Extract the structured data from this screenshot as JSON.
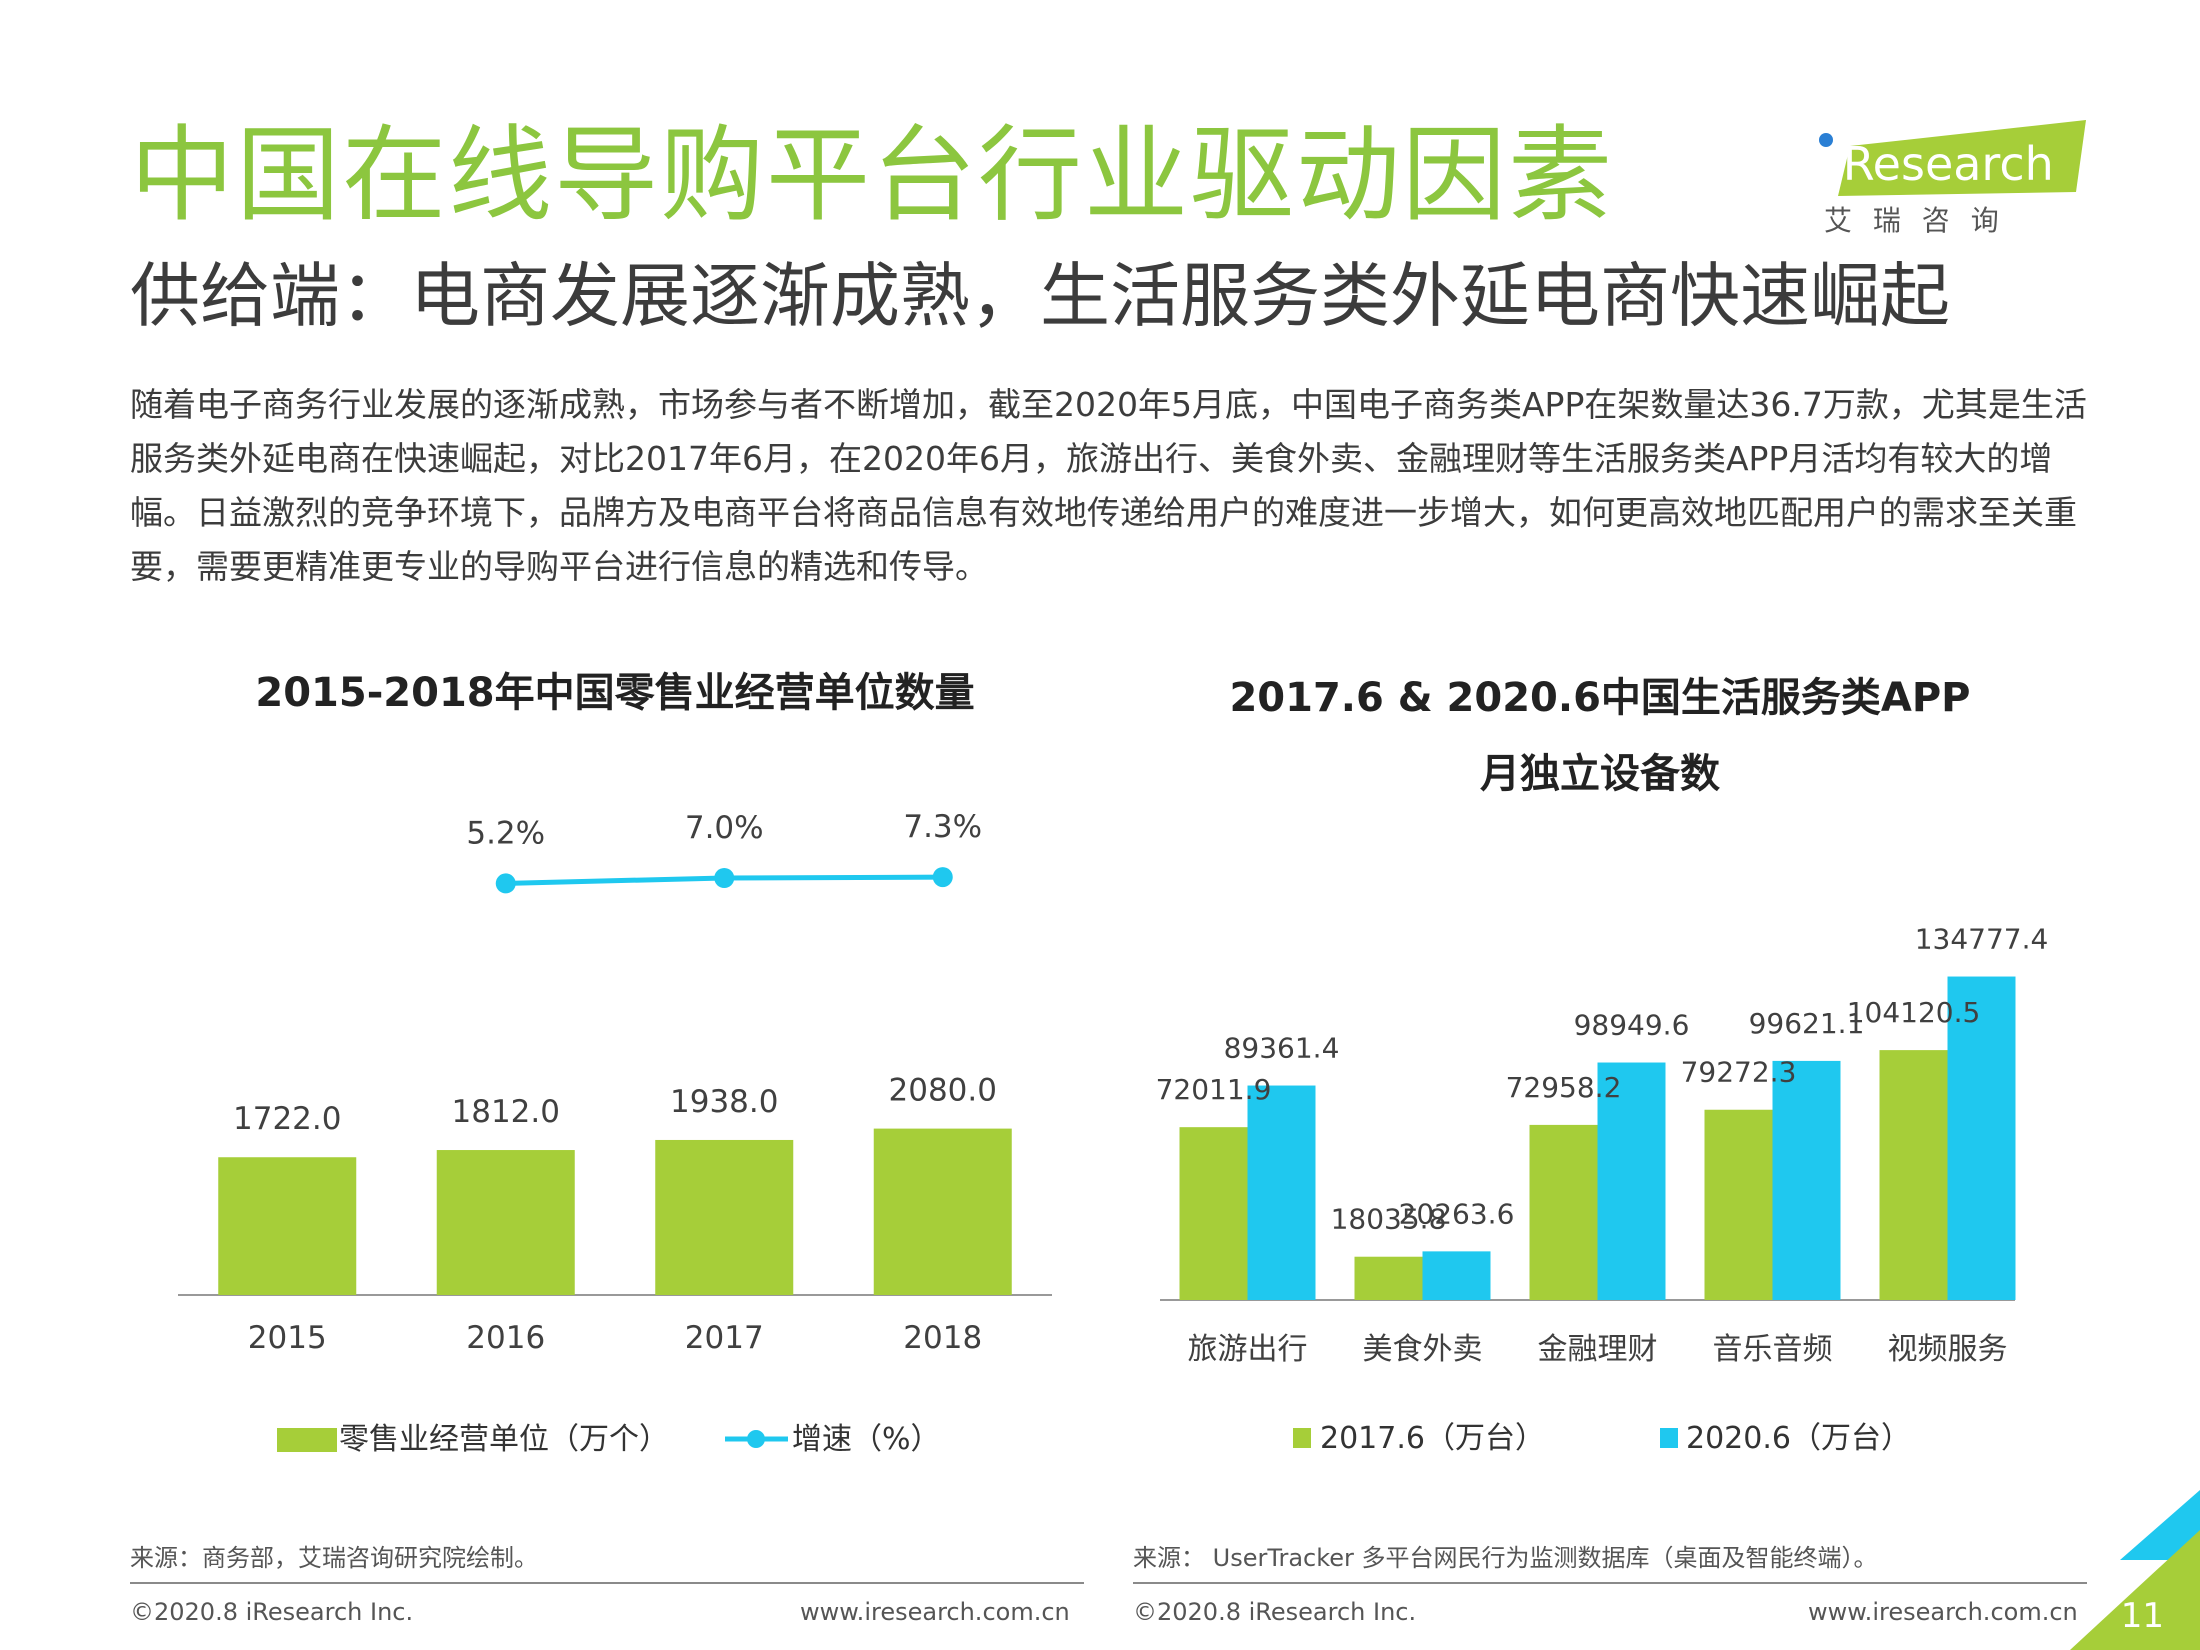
{
  "header": {
    "title": "中国在线导购平台行业驱动因素",
    "subtitle": "供给端：电商发展逐渐成熟，生活服务类外延电商快速崛起",
    "logo_text": "iResearch",
    "logo_sub": "艾 瑞 咨 询"
  },
  "intro": "随着电子商务行业发展的逐渐成熟，市场参与者不断增加，截至2020年5月底，中国电子商务类APP在架数量达36.7万款，尤其是生活服务类外延电商在快速崛起，对比2017年6月，在2020年6月，旅游出行、美食外卖、金融理财等生活服务类APP月活均有较大的增幅。日益激烈的竞争环境下，品牌方及电商平台将商品信息有效地传递给用户的难度进一步增大，如何更高效地匹配用户的需求至关重要，需要更精准更专业的导购平台进行信息的精选和传导。",
  "colors": {
    "green": "#a6ce39",
    "blue": "#1fc8ef",
    "title_green": "#8cc63f"
  },
  "chart_data": [
    {
      "type": "bar",
      "title": "2015-2018年中国零售业经营单位数量",
      "categories": [
        "2015",
        "2016",
        "2017",
        "2018"
      ],
      "series": [
        {
          "name": "零售业经营单位（万个）",
          "type": "bar",
          "values": [
            1722.0,
            1812.0,
            1938.0,
            2080.0
          ],
          "labels": [
            "1722.0",
            "1812.0",
            "1938.0",
            "2080.0"
          ]
        },
        {
          "name": "增速（%）",
          "type": "line",
          "x": [
            "2016",
            "2017",
            "2018"
          ],
          "values": [
            5.2,
            7.0,
            7.3
          ],
          "labels": [
            "5.2%",
            "7.0%",
            "7.3%"
          ]
        }
      ],
      "legend_position": "bottom"
    },
    {
      "type": "bar",
      "title_line1": "2017.6 & 2020.6中国生活服务类APP",
      "title_line2": "月独立设备数",
      "categories": [
        "旅游出行",
        "美食外卖",
        "金融理财",
        "音乐音频",
        "视频服务"
      ],
      "series": [
        {
          "name": "2017.6（万台）",
          "values": [
            72011.9,
            18035.8,
            72958.2,
            79272.3,
            104120.5
          ],
          "labels": [
            "72011.9",
            "18035.8",
            "72958.2",
            "79272.3",
            "104120.5"
          ]
        },
        {
          "name": "2020.6（万台）",
          "values": [
            89361.4,
            20263.6,
            98949.6,
            99621.1,
            134777.4
          ],
          "labels": [
            "89361.4",
            "20263.6",
            "98949.6",
            "99621.1",
            "134777.4"
          ]
        }
      ],
      "legend_position": "bottom"
    }
  ],
  "sources": {
    "left": "来源：商务部，艾瑞咨询研究院绘制。",
    "right": "来源： UserTracker 多平台网民行为监测数据库（桌面及智能终端）。"
  },
  "footer": {
    "copyright": "©2020.8 iResearch Inc.",
    "url": "www.iresearch.com.cn",
    "page": "11"
  }
}
